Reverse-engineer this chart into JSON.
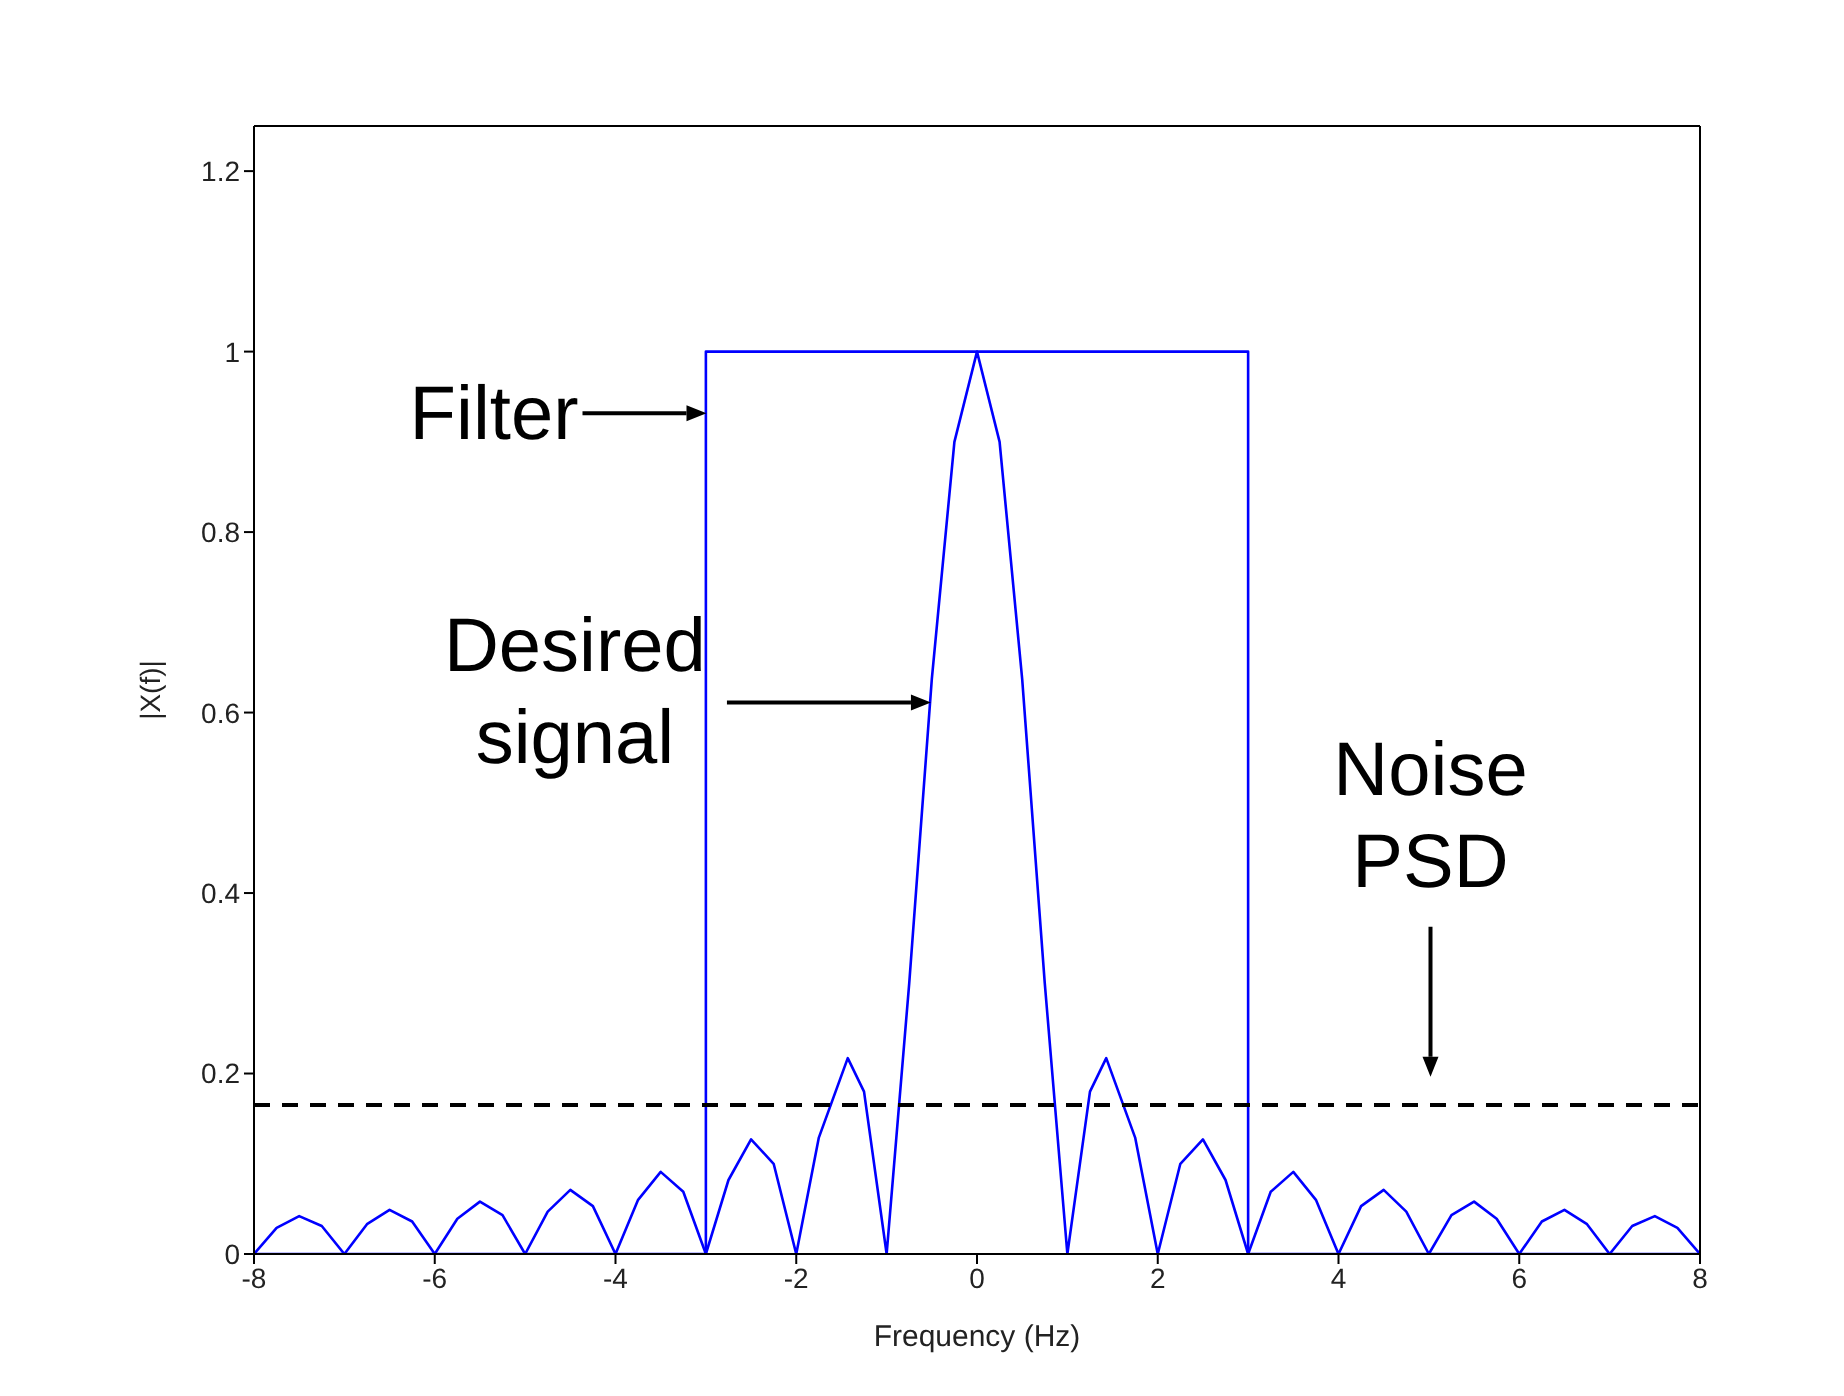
{
  "chart_data": {
    "type": "line",
    "xlabel": "Frequency (Hz)",
    "ylabel": "|X(f)|",
    "xlim": [
      -8,
      8
    ],
    "xticks": [
      -8,
      -6,
      -4,
      -2,
      0,
      2,
      4,
      6,
      8
    ],
    "ylim": [
      0,
      1.25
    ],
    "yticks": [
      0,
      0.2,
      0.4,
      0.6,
      0.8,
      1,
      1.2
    ],
    "grid": false,
    "marker": "none",
    "line_style": "solid",
    "series": [
      {
        "color": "#0000ff",
        "x": [
          -8,
          -3,
          -3,
          3,
          3,
          8
        ],
        "values": [
          0,
          0,
          1,
          1,
          0,
          0
        ]
      },
      {
        "color": "#0000ff",
        "x": [
          -8,
          -7.75,
          -7.5,
          -7.25,
          -7,
          -6.75,
          -6.5,
          -6.25,
          -6,
          -5.75,
          -5.5,
          -5.25,
          -5,
          -4.75,
          -4.5,
          -4.25,
          -4,
          -3.75,
          -3.5,
          -3.25,
          -3,
          -2.75,
          -2.5,
          -2.25,
          -2,
          -1.75,
          -1.43,
          -1.25,
          -1,
          -0.75,
          -0.5,
          -0.25,
          0,
          0.25,
          0.5,
          0.75,
          1,
          1.25,
          1.43,
          1.75,
          2,
          2.25,
          2.5,
          2.75,
          3,
          3.25,
          3.5,
          3.75,
          4,
          4.25,
          4.5,
          4.75,
          5,
          5.25,
          5.5,
          5.75,
          6,
          6.25,
          6.5,
          6.75,
          7,
          7.25,
          7.5,
          7.75,
          8
        ],
        "values": [
          0,
          0.029,
          0.042,
          0.031,
          0,
          0.033,
          0.049,
          0.036,
          0,
          0.039,
          0.058,
          0.043,
          0,
          0.047,
          0.071,
          0.053,
          0,
          0.06,
          0.091,
          0.069,
          0,
          0.082,
          0.127,
          0.1,
          0,
          0.129,
          0.217,
          0.18,
          0,
          0.3,
          0.637,
          0.9,
          1,
          0.9,
          0.637,
          0.3,
          0,
          0.18,
          0.217,
          0.129,
          0,
          0.1,
          0.127,
          0.082,
          0,
          0.069,
          0.091,
          0.06,
          0,
          0.053,
          0.071,
          0.047,
          0,
          0.043,
          0.058,
          0.039,
          0,
          0.036,
          0.049,
          0.033,
          0,
          0.031,
          0.042,
          0.029,
          0
        ]
      }
    ],
    "ref_lines": [
      {
        "axis": "y",
        "value": 0.165,
        "color": "#000000",
        "line_style": "dashed"
      }
    ],
    "annotations": [
      {
        "text": "Filter",
        "x": -3,
        "y": 0.93
      },
      {
        "text": "Desired signal",
        "x": -0.52,
        "y": 0.61
      },
      {
        "text": "Noise PSD",
        "x": 5,
        "y": 0.165
      }
    ]
  }
}
